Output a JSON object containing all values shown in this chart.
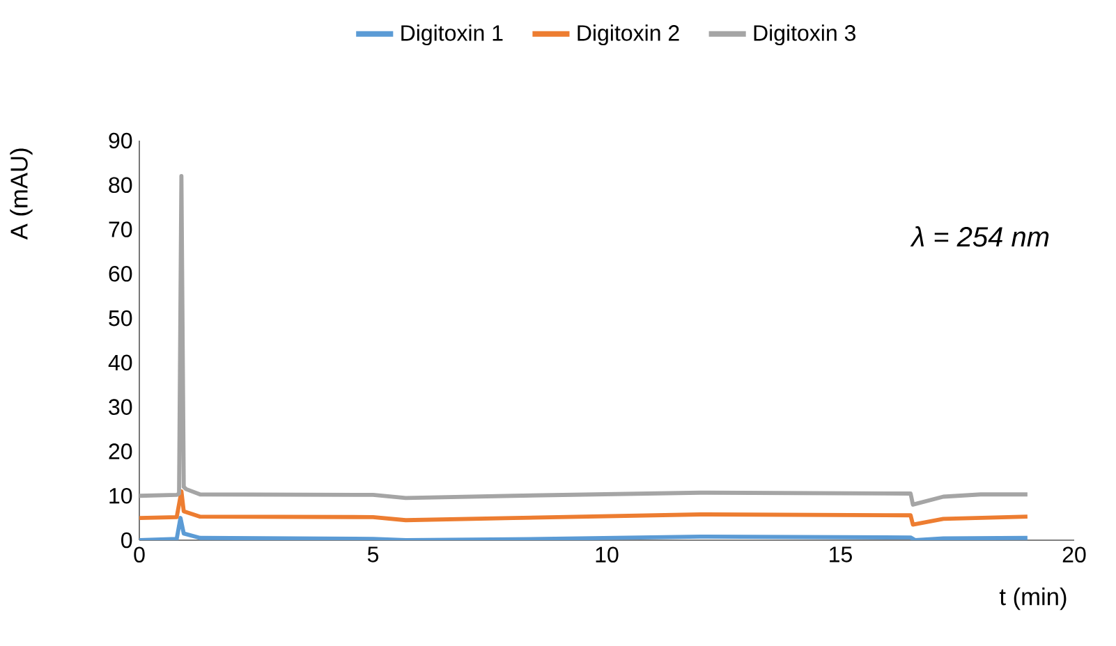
{
  "chart_data": {
    "type": "line",
    "xlabel": "t (min)",
    "ylabel": "A (mAU)",
    "annotations": [
      "λ = 254 nm"
    ],
    "xlim": [
      0,
      20
    ],
    "ylim": [
      0,
      90
    ],
    "xticks": [
      0,
      5,
      10,
      15,
      20
    ],
    "yticks": [
      0,
      10,
      20,
      30,
      40,
      50,
      60,
      70,
      80,
      90
    ],
    "legend": "top",
    "grid": false,
    "marker": "none",
    "line_style": "solid",
    "series": [
      {
        "name": "Digitoxin 1",
        "color": "#5b9bd5",
        "x": [
          0,
          0.8,
          0.88,
          0.95,
          1.3,
          5,
          5.7,
          8,
          12,
          16.5,
          16.6,
          17.2,
          19
        ],
        "values": [
          0,
          0.3,
          5,
          1.5,
          0.5,
          0.3,
          0,
          0.2,
          0.8,
          0.6,
          0,
          0.4,
          0.5
        ]
      },
      {
        "name": "Digitoxin 2",
        "color": "#ed7d31",
        "x": [
          0,
          0.8,
          0.9,
          0.95,
          1.3,
          5,
          5.7,
          8,
          12,
          16.5,
          16.55,
          17.2,
          19
        ],
        "values": [
          5,
          5.2,
          11,
          6.5,
          5.3,
          5.2,
          4.5,
          5,
          5.8,
          5.6,
          3.5,
          4.8,
          5.3
        ]
      },
      {
        "name": "Digitoxin 3",
        "color": "#a5a5a5",
        "x": [
          0,
          0.8,
          0.85,
          0.9,
          0.95,
          1.0,
          1.3,
          5,
          5.7,
          8,
          12,
          16.5,
          16.55,
          17.2,
          18,
          19
        ],
        "values": [
          10,
          10.2,
          10.5,
          82,
          12,
          11.5,
          10.3,
          10.2,
          9.5,
          10,
          10.7,
          10.5,
          8,
          9.8,
          10.3,
          10.3
        ]
      }
    ]
  }
}
